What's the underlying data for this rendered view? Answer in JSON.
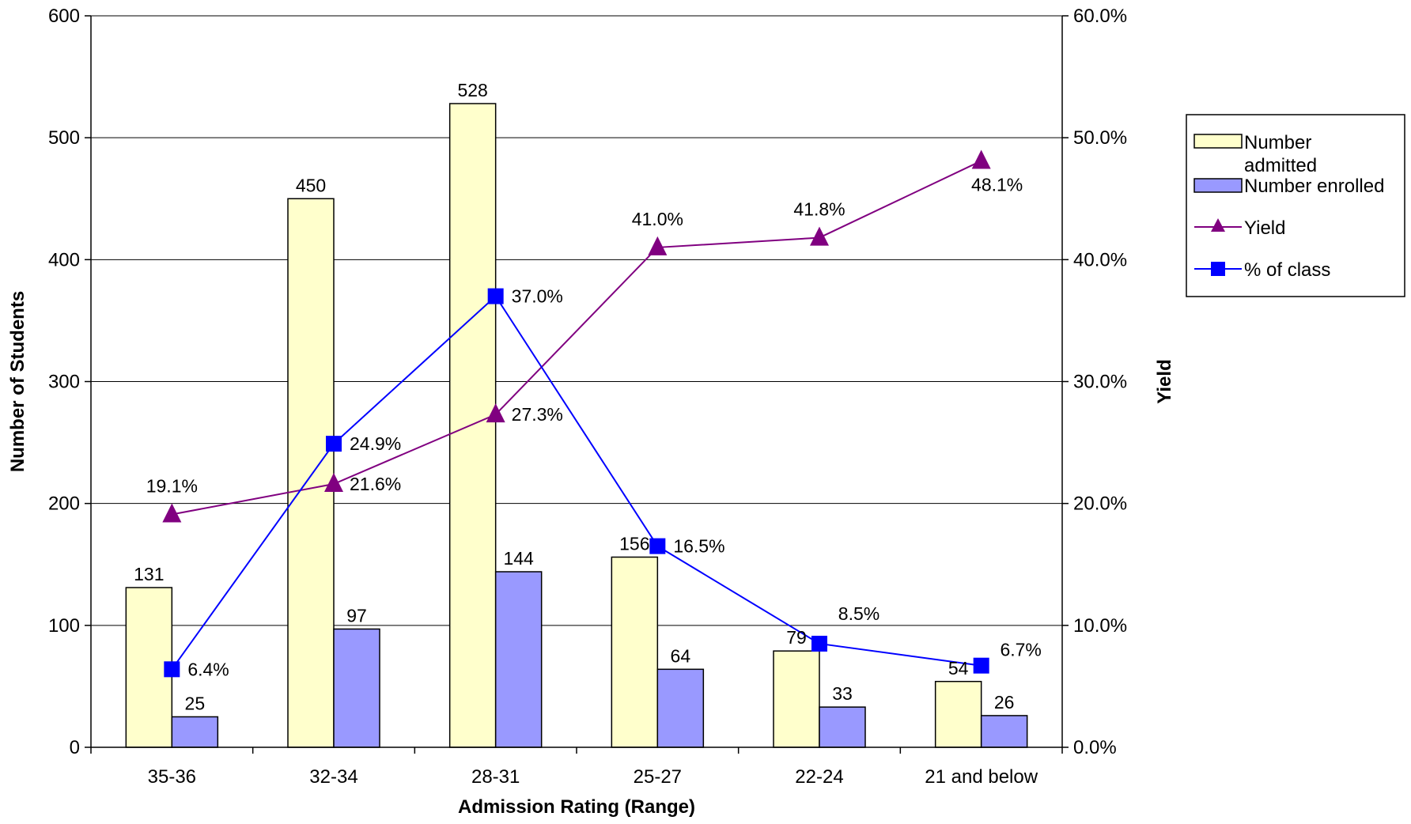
{
  "chart_data": {
    "type": "bar",
    "categories": [
      "35-36",
      "32-34",
      "28-31",
      "25-27",
      "22-24",
      "21 and below"
    ],
    "series": [
      {
        "name": "Number admitted",
        "kind": "bar",
        "axis": "left",
        "color": "#FFFFCC",
        "values": [
          131,
          450,
          528,
          156,
          79,
          54
        ],
        "labels": [
          "131",
          "450",
          "528",
          "156",
          "79",
          "54"
        ]
      },
      {
        "name": "Number enrolled",
        "kind": "bar",
        "axis": "left",
        "color": "#9999FF",
        "values": [
          25,
          97,
          144,
          64,
          33,
          26
        ],
        "labels": [
          "25",
          "97",
          "144",
          "64",
          "33",
          "26"
        ]
      },
      {
        "name": "Yield",
        "kind": "line",
        "marker": "triangle",
        "axis": "right",
        "color": "#800080",
        "values": [
          19.1,
          21.6,
          27.3,
          41.0,
          41.8,
          48.1
        ],
        "labels": [
          "19.1%",
          "21.6%",
          "27.3%",
          "41.0%",
          "41.8%",
          "48.1%"
        ]
      },
      {
        "name": "% of class",
        "kind": "line",
        "marker": "square",
        "axis": "right",
        "color": "#0000FF",
        "values": [
          6.4,
          24.9,
          37.0,
          16.5,
          8.5,
          6.7
        ],
        "labels": [
          "6.4%",
          "24.9%",
          "37.0%",
          "16.5%",
          "8.5%",
          "6.7%"
        ]
      }
    ],
    "xlabel": "Admission Rating (Range)",
    "ylabel": "Number of Students",
    "y2label": "Yield",
    "ylim": [
      0,
      600
    ],
    "y2lim": [
      0,
      60
    ],
    "yticks": [
      "0",
      "100",
      "200",
      "300",
      "400",
      "500",
      "600"
    ],
    "y2ticks": [
      "0.0%",
      "10.0%",
      "20.0%",
      "30.0%",
      "40.0%",
      "50.0%",
      "60.0%"
    ],
    "grid": true,
    "legend": "right",
    "legend_labels": {
      "admitted_line1": "Number",
      "admitted_line2": "admitted",
      "enrolled": "Number enrolled",
      "yield": "Yield",
      "pct_class": "% of class"
    }
  }
}
